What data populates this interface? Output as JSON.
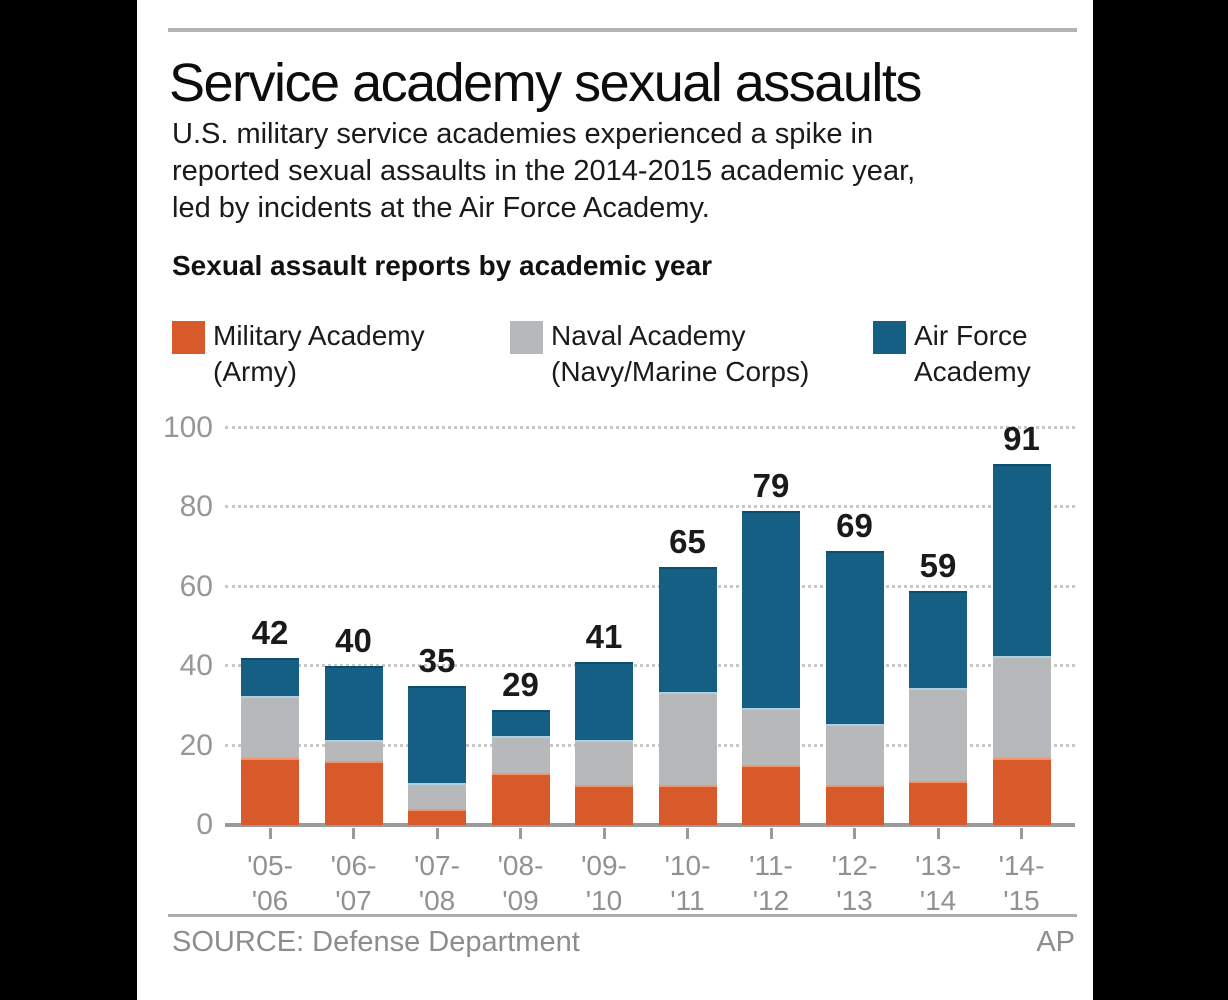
{
  "header": {
    "title": "Service academy sexual assaults",
    "subtitle_lines": [
      "U.S. military service academies experienced a spike in",
      "reported sexual assaults in the 2014-2015 academic year,",
      "led by incidents at the Air Force Academy."
    ]
  },
  "legend": [
    {
      "color": "#D85A2B",
      "line1": "Military Academy",
      "line2": "(Army)"
    },
    {
      "color": "#B6B8BA",
      "line1": "Naval Academy",
      "line2": "(Navy/Marine Corps)"
    },
    {
      "color": "#155F84",
      "line1": "Air Force",
      "line2": "Academy"
    }
  ],
  "chart_data": {
    "type": "bar",
    "subtype": "stacked",
    "title": "Sexual assault reports by academic year",
    "categories": [
      {
        "line1": "'05-",
        "line2": "'06"
      },
      {
        "line1": "'06-",
        "line2": "'07"
      },
      {
        "line1": "'07-",
        "line2": "'08"
      },
      {
        "line1": "'08-",
        "line2": "'09"
      },
      {
        "line1": "'09-",
        "line2": "'10"
      },
      {
        "line1": "'10-",
        "line2": "'11"
      },
      {
        "line1": "'11-",
        "line2": "'12"
      },
      {
        "line1": "'12-",
        "line2": "'13"
      },
      {
        "line1": "'13-",
        "line2": "'14"
      },
      {
        "line1": "'14-",
        "line2": "'15"
      }
    ],
    "series": [
      {
        "name": "Military Academy (Army)",
        "color": "#D85A2B",
        "class": "seg-army",
        "values": [
          17,
          16,
          4,
          13,
          10,
          10,
          15,
          10,
          11,
          17
        ]
      },
      {
        "name": "Naval Academy (Navy/Marine Corps)",
        "color": "#B6B8BA",
        "class": "seg-navy",
        "values": [
          15,
          5,
          6,
          9,
          11,
          23,
          14,
          15,
          23,
          25
        ]
      },
      {
        "name": "Air Force Academy",
        "color": "#155F84",
        "class": "seg-af",
        "values": [
          10,
          19,
          25,
          7,
          20,
          32,
          50,
          44,
          25,
          49
        ]
      }
    ],
    "totals": [
      42,
      40,
      35,
      29,
      41,
      65,
      79,
      69,
      59,
      91
    ],
    "ylim": [
      0,
      100
    ],
    "yticks": [
      0,
      20,
      40,
      60,
      80,
      100
    ],
    "grid": "dotted horizontal",
    "legend_position": "top"
  },
  "footer": {
    "source": "SOURCE: Defense Department",
    "credit": "AP"
  }
}
